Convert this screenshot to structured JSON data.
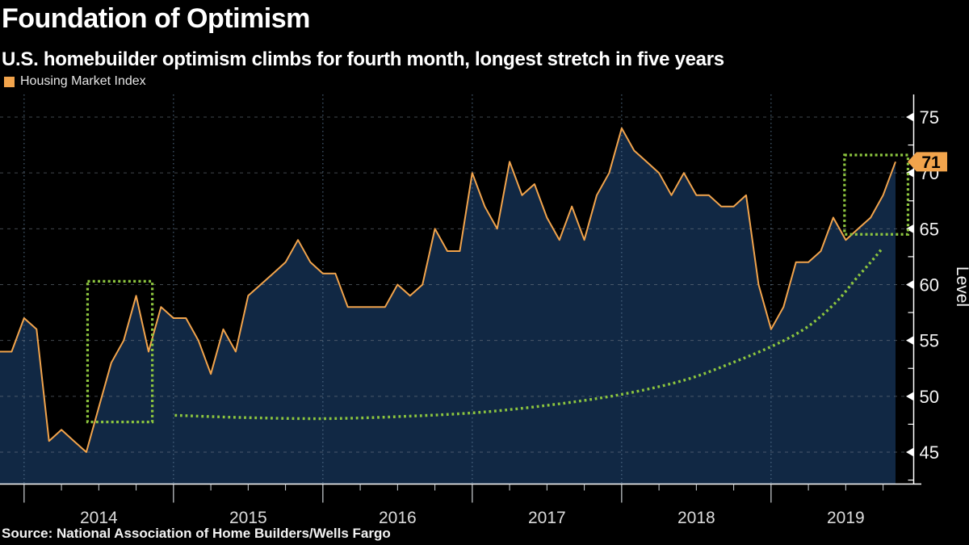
{
  "header": {
    "title": "Foundation of Optimism",
    "subtitle": "U.S. homebuilder optimism climbs for fourth month, longest stretch in five years"
  },
  "legend": {
    "label": "Housing Market Index",
    "swatch_color": "#f2a44c"
  },
  "source": "Source: National Association of Home Builders/Wells Fargo",
  "chart_data": {
    "type": "area",
    "title": "Foundation of Optimism",
    "subtitle": "U.S. homebuilder optimism climbs for fourth month, longest stretch in five years",
    "ylabel": "Level",
    "xlabel": "",
    "x_start_month": "2013-10",
    "x_end_month": "2019-10",
    "frequency": "monthly",
    "series": [
      {
        "name": "Housing Market Index",
        "color": "#f2a44c",
        "values": [
          54,
          54,
          57,
          56,
          46,
          47,
          46,
          45,
          49,
          53,
          55,
          59,
          54,
          58,
          57,
          57,
          55,
          52,
          56,
          54,
          59,
          60,
          61,
          62,
          64,
          62,
          61,
          61,
          58,
          58,
          58,
          58,
          60,
          59,
          60,
          65,
          63,
          63,
          70,
          67,
          65,
          71,
          68,
          69,
          66,
          64,
          67,
          64,
          68,
          70,
          74,
          72,
          71,
          70,
          68,
          70,
          68,
          68,
          67,
          67,
          68,
          60,
          56,
          58,
          62,
          62,
          63,
          66,
          64,
          65,
          66,
          68,
          71
        ]
      }
    ],
    "last_value_label": "71",
    "last_value_badge_color": "#f2a44c",
    "y_ticks": [
      45,
      50,
      55,
      60,
      65,
      70,
      75
    ],
    "y_minor_step": 2.5,
    "ylim": [
      42.2,
      77
    ],
    "x_tick_years": [
      2014,
      2015,
      2016,
      2017,
      2018,
      2019
    ],
    "grid": {
      "horizontal": true,
      "vertical": true
    },
    "legend_position": "top-left",
    "annotations": {
      "color": "#8dc63f",
      "boxes": [
        {
          "name": "streak-2014",
          "month_from": 7.1,
          "month_to": 12.3,
          "value_from": 47.7,
          "value_to": 60.3
        },
        {
          "name": "streak-2019",
          "month_from": 67.9,
          "month_to": 73.0,
          "value_from": 64.5,
          "value_to": 71.6
        }
      ],
      "trend_curve_points": [
        [
          14.1,
          48.3
        ],
        [
          19.5,
          48.1
        ],
        [
          26.0,
          48.0
        ],
        [
          32.5,
          48.2
        ],
        [
          39.0,
          48.6
        ],
        [
          45.5,
          49.4
        ],
        [
          50.6,
          50.3
        ],
        [
          55.2,
          51.5
        ],
        [
          59.1,
          53.1
        ],
        [
          62.3,
          54.6
        ],
        [
          64.9,
          56.2
        ],
        [
          67.2,
          58.4
        ],
        [
          68.8,
          60.5
        ],
        [
          70.0,
          62.0
        ],
        [
          70.9,
          63.2
        ]
      ]
    }
  }
}
